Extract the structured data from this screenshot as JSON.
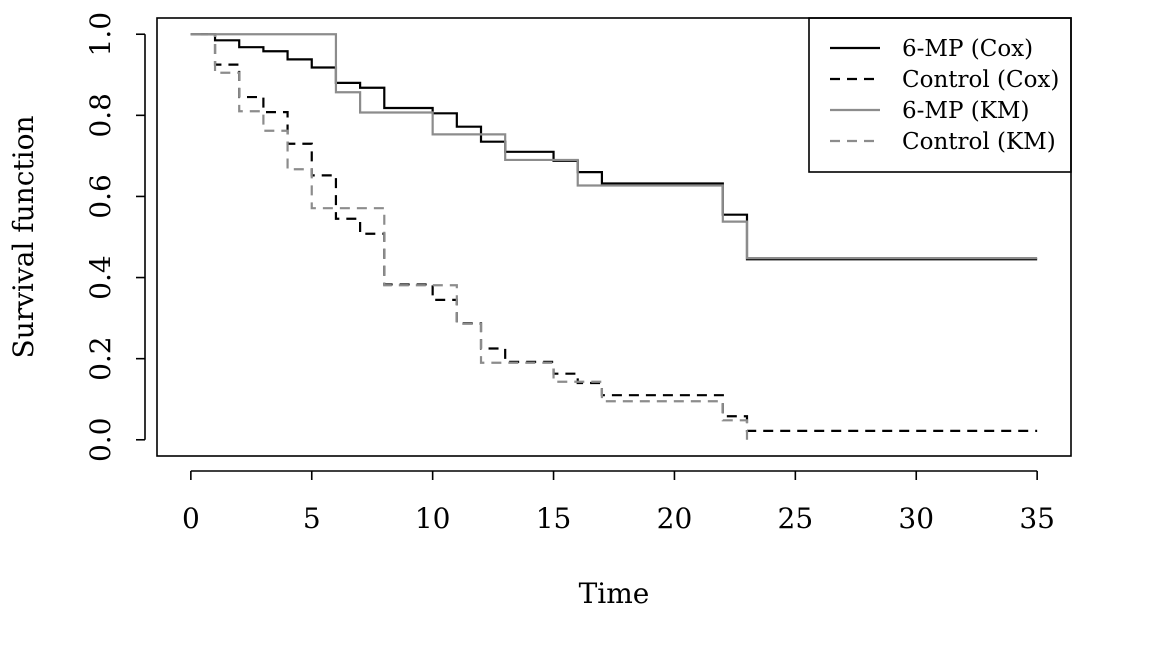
{
  "chart_data": {
    "type": "line",
    "step": true,
    "title": "",
    "xlabel": "Time",
    "ylabel": "Survival function",
    "xlim": [
      -1.4,
      36.4
    ],
    "ylim": [
      -0.04,
      1.04
    ],
    "xticks": [
      0,
      5,
      10,
      15,
      20,
      25,
      30,
      35
    ],
    "xtick_labels": [
      "0",
      "5",
      "10",
      "15",
      "20",
      "25",
      "30",
      "35"
    ],
    "yticks": [
      0.0,
      0.2,
      0.4,
      0.6,
      0.8,
      1.0
    ],
    "ytick_labels": [
      "0.0",
      "0.2",
      "0.4",
      "0.6",
      "0.8",
      "1.0"
    ],
    "grid": false,
    "legend_position": "top-right",
    "series": [
      {
        "name": "6-MP (Cox)",
        "color": "#000000",
        "dash": "solid",
        "x": [
          0,
          1,
          2,
          3,
          4,
          5,
          6,
          7,
          8,
          10,
          11,
          12,
          13,
          15,
          16,
          17,
          22,
          23,
          35
        ],
        "y": [
          1.0,
          0.985,
          0.968,
          0.958,
          0.938,
          0.918,
          0.88,
          0.868,
          0.818,
          0.805,
          0.772,
          0.735,
          0.71,
          0.688,
          0.66,
          0.632,
          0.555,
          0.445,
          0.445
        ]
      },
      {
        "name": "Control (Cox)",
        "color": "#000000",
        "dash": "dashed",
        "x": [
          0,
          1,
          2,
          3,
          4,
          5,
          6,
          7,
          8,
          10,
          11,
          12,
          13,
          15,
          16,
          17,
          22,
          23,
          35
        ],
        "y": [
          1.0,
          0.925,
          0.845,
          0.808,
          0.73,
          0.652,
          0.545,
          0.508,
          0.383,
          0.345,
          0.287,
          0.225,
          0.192,
          0.163,
          0.14,
          0.11,
          0.058,
          0.022,
          0.022
        ]
      },
      {
        "name": "6-MP (KM)",
        "color": "#8c8c8c",
        "dash": "solid",
        "x": [
          0,
          6,
          7,
          10,
          13,
          16,
          22,
          23,
          35
        ],
        "y": [
          1.0,
          0.857,
          0.807,
          0.753,
          0.69,
          0.627,
          0.538,
          0.448,
          0.448
        ]
      },
      {
        "name": "Control (KM)",
        "color": "#8c8c8c",
        "dash": "dashed",
        "x": [
          0,
          1,
          2,
          3,
          4,
          5,
          8,
          11,
          12,
          15,
          17,
          22,
          23
        ],
        "y": [
          1.0,
          0.905,
          0.81,
          0.762,
          0.667,
          0.571,
          0.381,
          0.286,
          0.19,
          0.143,
          0.095,
          0.048,
          0.0
        ]
      }
    ]
  }
}
